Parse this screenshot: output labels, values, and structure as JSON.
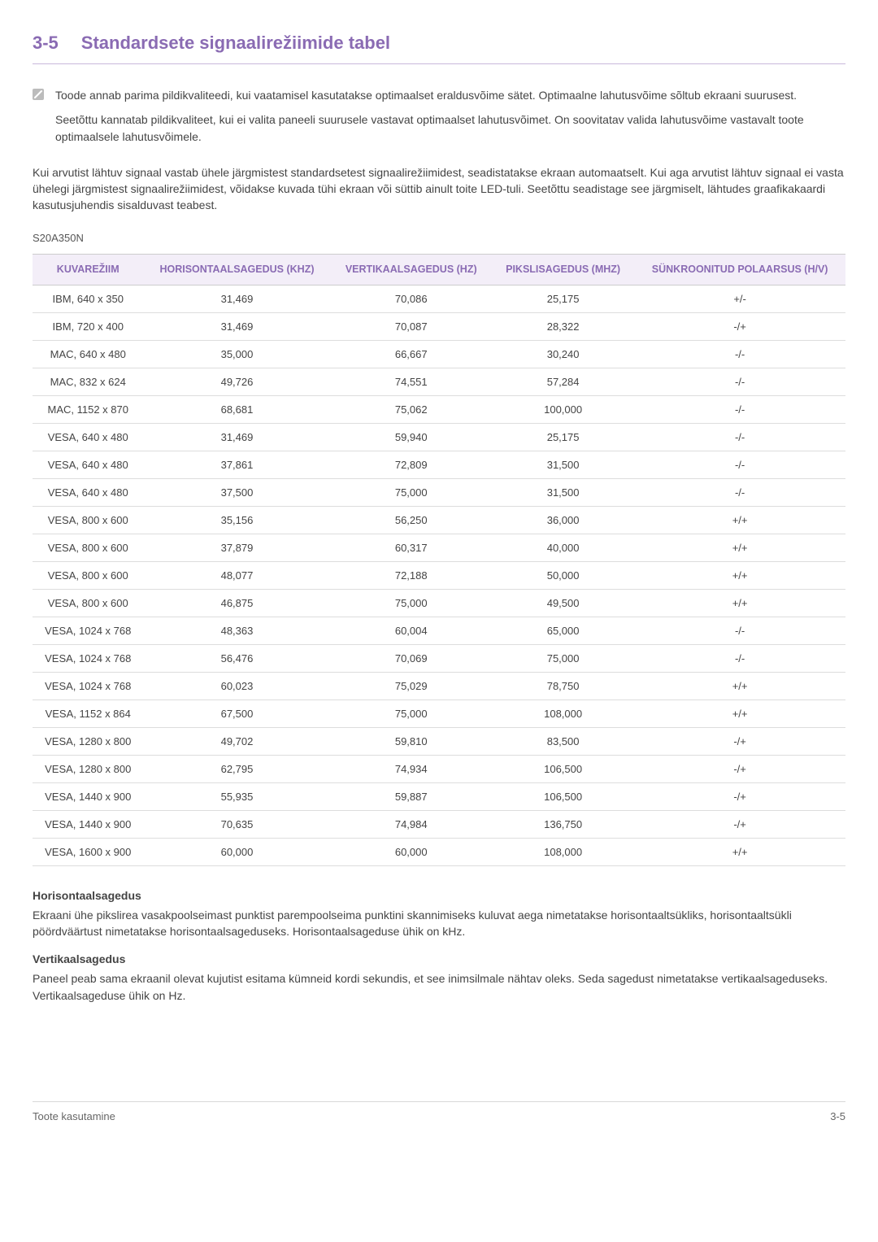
{
  "heading": {
    "number": "3-5",
    "title": "Standardsete signaalirežiimide tabel"
  },
  "note": {
    "para1": "Toode annab parima pildikvaliteedi, kui vaatamisel kasutatakse optimaalset eraldusvõime sätet. Optimaalne lahutusvõime sõltub ekraani suurusest.",
    "para2": "Seetõttu kannatab pildikvaliteet, kui ei valita paneeli suurusele vastavat optimaalset lahutusvõimet. On soovitatav valida lahutusvõime vastavalt toote optimaalsele lahutusvõimele."
  },
  "intro": "Kui arvutist lähtuv signaal vastab ühele järgmistest standardsetest signaalirežiimidest, seadistatakse ekraan automaatselt. Kui aga arvutist lähtuv signaal ei vasta ühelegi järgmistest signaalirežiimidest, võidakse kuvada tühi ekraan või süttib ainult toite LED-tuli. Seetõttu seadistage see järgmiselt, lähtudes graafikakaardi kasutusjuhendis sisalduvast teabest.",
  "model": "S20A350N",
  "table": {
    "headers": {
      "col1": "KUVAREŽIIM",
      "col2": "HORISONTAALSAGEDUS (KHZ)",
      "col3": "VERTIKAALSAGEDUS (HZ)",
      "col4": "PIKSLISAGEDUS (MHZ)",
      "col5": "SÜNKROONITUD POLAARSUS (H/V)"
    },
    "rows": [
      {
        "c1": "IBM, 640 x 350",
        "c2": "31,469",
        "c3": "70,086",
        "c4": "25,175",
        "c5": "+/-"
      },
      {
        "c1": "IBM, 720 x 400",
        "c2": "31,469",
        "c3": "70,087",
        "c4": "28,322",
        "c5": "-/+"
      },
      {
        "c1": "MAC, 640 x 480",
        "c2": "35,000",
        "c3": "66,667",
        "c4": "30,240",
        "c5": "-/-"
      },
      {
        "c1": "MAC, 832 x 624",
        "c2": "49,726",
        "c3": "74,551",
        "c4": "57,284",
        "c5": "-/-"
      },
      {
        "c1": "MAC, 1152 x 870",
        "c2": "68,681",
        "c3": "75,062",
        "c4": "100,000",
        "c5": "-/-"
      },
      {
        "c1": "VESA, 640 x 480",
        "c2": "31,469",
        "c3": "59,940",
        "c4": "25,175",
        "c5": "-/-"
      },
      {
        "c1": "VESA, 640 x 480",
        "c2": "37,861",
        "c3": "72,809",
        "c4": "31,500",
        "c5": "-/-"
      },
      {
        "c1": "VESA, 640 x 480",
        "c2": "37,500",
        "c3": "75,000",
        "c4": "31,500",
        "c5": "-/-"
      },
      {
        "c1": "VESA, 800 x 600",
        "c2": "35,156",
        "c3": "56,250",
        "c4": "36,000",
        "c5": "+/+"
      },
      {
        "c1": "VESA, 800 x 600",
        "c2": "37,879",
        "c3": "60,317",
        "c4": "40,000",
        "c5": "+/+"
      },
      {
        "c1": "VESA, 800 x 600",
        "c2": "48,077",
        "c3": "72,188",
        "c4": "50,000",
        "c5": "+/+"
      },
      {
        "c1": "VESA, 800 x 600",
        "c2": "46,875",
        "c3": "75,000",
        "c4": "49,500",
        "c5": "+/+"
      },
      {
        "c1": "VESA, 1024 x 768",
        "c2": "48,363",
        "c3": "60,004",
        "c4": "65,000",
        "c5": "-/-"
      },
      {
        "c1": "VESA, 1024 x 768",
        "c2": "56,476",
        "c3": "70,069",
        "c4": "75,000",
        "c5": "-/-"
      },
      {
        "c1": "VESA, 1024 x 768",
        "c2": "60,023",
        "c3": "75,029",
        "c4": "78,750",
        "c5": "+/+"
      },
      {
        "c1": "VESA, 1152 x 864",
        "c2": "67,500",
        "c3": "75,000",
        "c4": "108,000",
        "c5": "+/+"
      },
      {
        "c1": "VESA, 1280 x 800",
        "c2": "49,702",
        "c3": "59,810",
        "c4": "83,500",
        "c5": "-/+"
      },
      {
        "c1": "VESA, 1280 x 800",
        "c2": "62,795",
        "c3": "74,934",
        "c4": "106,500",
        "c5": "-/+"
      },
      {
        "c1": "VESA, 1440 x 900",
        "c2": "55,935",
        "c3": "59,887",
        "c4": "106,500",
        "c5": "-/+"
      },
      {
        "c1": "VESA, 1440 x 900",
        "c2": "70,635",
        "c3": "74,984",
        "c4": "136,750",
        "c5": "-/+"
      },
      {
        "c1": "VESA, 1600 x 900",
        "c2": "60,000",
        "c3": "60,000",
        "c4": "108,000",
        "c5": "+/+"
      }
    ]
  },
  "definitions": {
    "hTitle": "Horisontaalsagedus",
    "hText": "Ekraani ühe pikslirea vasakpoolseimast punktist parempoolseima punktini skannimiseks kuluvat aega nimetatakse horisontaaltsükliks, horisontaaltsükli pöördväärtust nimetatakse horisontaalsageduseks. Horisontaalsageduse ühik on kHz.",
    "vTitle": "Vertikaalsagedus",
    "vText": "Paneel peab sama ekraanil olevat kujutist esitama kümneid kordi sekundis, et see inimsilmale nähtav oleks. Seda sagedust nimetatakse vertikaalsageduseks. Vertikaalsageduse ühik on Hz."
  },
  "footer": {
    "left": "Toote kasutamine",
    "right": "3-5"
  },
  "colors": {
    "accent": "#8a6bb3",
    "headerBg": "#f3eef8",
    "bodyText": "#444444",
    "border": "#dddddd"
  }
}
